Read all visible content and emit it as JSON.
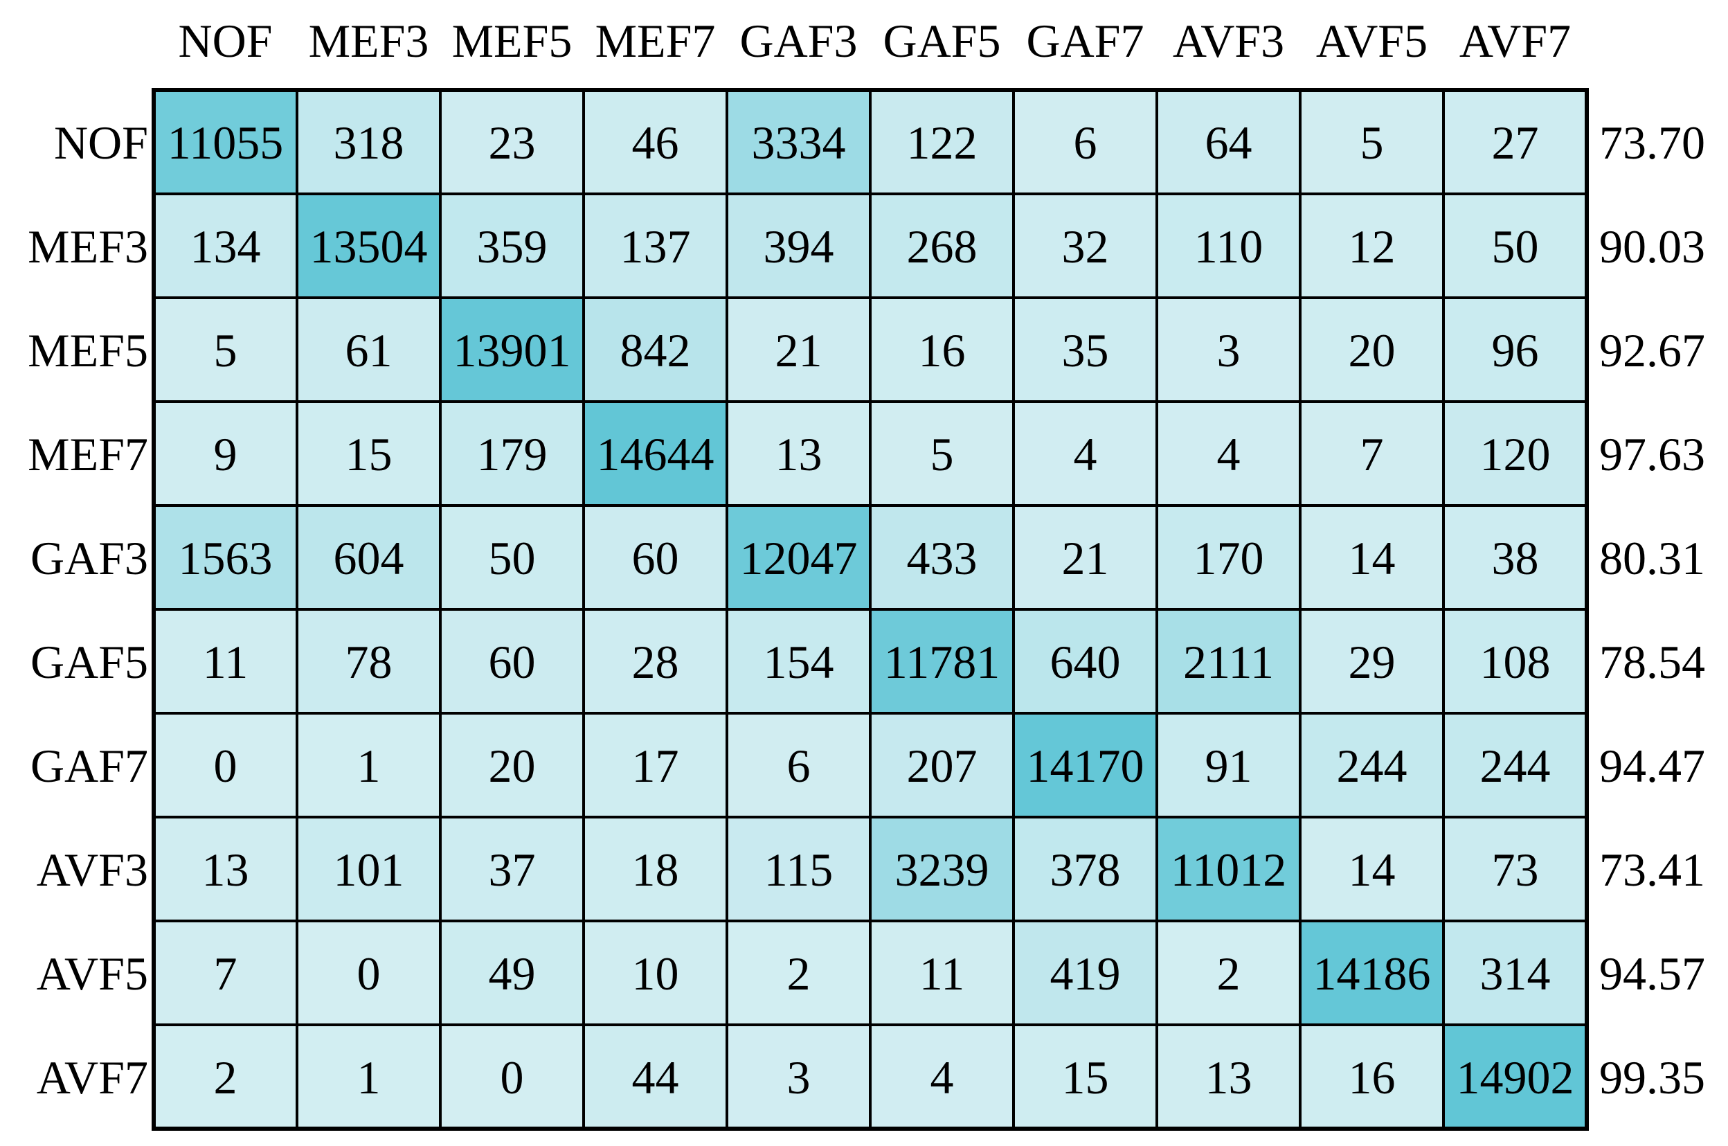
{
  "chart_data": {
    "type": "heatmap",
    "title": "",
    "xlabel": "",
    "ylabel": "",
    "columns": [
      "NOF",
      "MEF3",
      "MEF5",
      "MEF7",
      "GAF3",
      "GAF5",
      "GAF7",
      "AVF3",
      "AVF5",
      "AVF7"
    ],
    "rows": [
      "NOF",
      "MEF3",
      "MEF5",
      "MEF7",
      "GAF3",
      "GAF5",
      "GAF7",
      "AVF3",
      "AVF5",
      "AVF7"
    ],
    "values": [
      [
        11055,
        318,
        23,
        46,
        3334,
        122,
        6,
        64,
        5,
        27
      ],
      [
        134,
        13504,
        359,
        137,
        394,
        268,
        32,
        110,
        12,
        50
      ],
      [
        5,
        61,
        13901,
        842,
        21,
        16,
        35,
        3,
        20,
        96
      ],
      [
        9,
        15,
        179,
        14644,
        13,
        5,
        4,
        4,
        7,
        120
      ],
      [
        1563,
        604,
        50,
        60,
        12047,
        433,
        21,
        170,
        14,
        38
      ],
      [
        11,
        78,
        60,
        28,
        154,
        11781,
        640,
        2111,
        29,
        108
      ],
      [
        0,
        1,
        20,
        17,
        6,
        207,
        14170,
        91,
        244,
        244
      ],
      [
        13,
        101,
        37,
        18,
        115,
        3239,
        378,
        11012,
        14,
        73
      ],
      [
        7,
        0,
        49,
        10,
        2,
        11,
        419,
        2,
        14186,
        314
      ],
      [
        2,
        1,
        0,
        44,
        3,
        4,
        15,
        13,
        16,
        14902
      ]
    ],
    "row_accuracy": [
      "73.70",
      "90.03",
      "92.67",
      "97.63",
      "80.31",
      "78.54",
      "94.47",
      "73.41",
      "94.57",
      "99.35"
    ],
    "colors": {
      "low": "#d3eef2",
      "high": "#61c6d6",
      "grid": "#000000"
    },
    "legend": "none"
  }
}
